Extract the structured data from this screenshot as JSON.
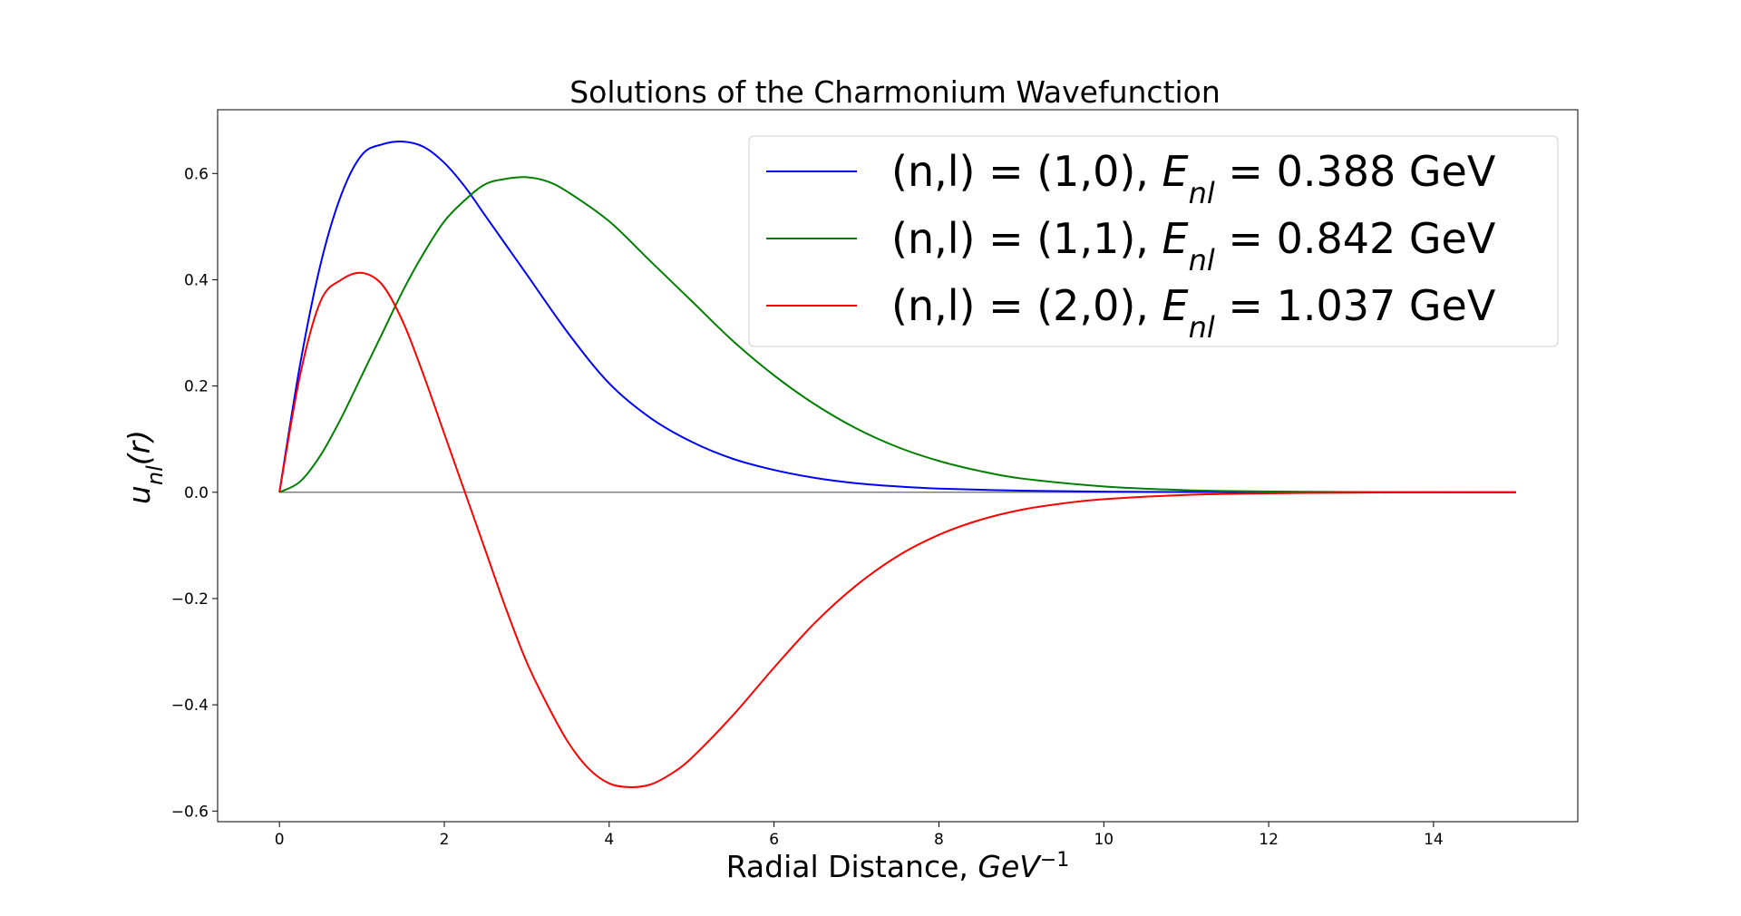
{
  "chart_data": {
    "type": "line",
    "title": "Solutions of the Charmonium Wavefunction",
    "xlabel": {
      "text": "Radial Distance, ",
      "italic": "GeV",
      "sup": "−1"
    },
    "ylabel": {
      "italic": "u",
      "sub": "nl",
      "rest": "(r)"
    },
    "xlim": [
      -0.75,
      15.75
    ],
    "ylim": [
      -0.62,
      0.72
    ],
    "x_ticks": [
      0,
      2,
      4,
      6,
      8,
      10,
      12,
      14
    ],
    "x_tick_labels": [
      "0",
      "2",
      "4",
      "6",
      "8",
      "10",
      "12",
      "14"
    ],
    "y_ticks": [
      -0.6,
      -0.4,
      -0.2,
      0.0,
      0.2,
      0.4,
      0.6
    ],
    "y_tick_labels": [
      "−0.6",
      "−0.4",
      "−0.2",
      "0.0",
      "0.2",
      "0.4",
      "0.6"
    ],
    "grid": false,
    "legend_position": "top-right",
    "reference_line": {
      "y": 0,
      "x_range": [
        0,
        15
      ],
      "color": "#808080"
    },
    "series": [
      {
        "label_prefix": "(n,l) = (1,0), ",
        "label_italic": "E",
        "label_sub": "nl",
        "label_suffix": " =  0.388 GeV",
        "color": "#0000ff",
        "x": [
          0,
          0.25,
          0.5,
          0.75,
          1.0,
          1.25,
          1.5,
          1.75,
          2.0,
          2.25,
          2.5,
          2.75,
          3.0,
          3.5,
          4.0,
          4.5,
          5.0,
          5.5,
          6.0,
          6.5,
          7.0,
          7.5,
          8.0,
          9.0,
          10.0,
          11.0,
          12.0,
          13.0,
          14.0,
          15.0
        ],
        "y": [
          0,
          0.24,
          0.43,
          0.56,
          0.635,
          0.655,
          0.66,
          0.65,
          0.62,
          0.575,
          0.52,
          0.465,
          0.41,
          0.3,
          0.205,
          0.14,
          0.095,
          0.063,
          0.042,
          0.027,
          0.017,
          0.011,
          0.007,
          0.003,
          0.0012,
          0.0005,
          0.0002,
          0.0001,
          0,
          0
        ]
      },
      {
        "label_prefix": "(n,l) = (1,1), ",
        "label_italic": "E",
        "label_sub": "nl",
        "label_suffix": " =  0.842 GeV",
        "color": "#008000",
        "x": [
          0,
          0.25,
          0.5,
          0.75,
          1.0,
          1.25,
          1.5,
          1.75,
          2.0,
          2.25,
          2.5,
          2.75,
          3.0,
          3.25,
          3.5,
          4.0,
          4.5,
          5.0,
          5.5,
          6.0,
          6.5,
          7.0,
          7.5,
          8.0,
          8.5,
          9.0,
          10.0,
          11.0,
          12.0,
          13.0,
          14.0,
          15.0
        ],
        "y": [
          0,
          0.02,
          0.07,
          0.14,
          0.22,
          0.3,
          0.38,
          0.45,
          0.51,
          0.55,
          0.58,
          0.59,
          0.593,
          0.585,
          0.565,
          0.51,
          0.435,
          0.36,
          0.285,
          0.22,
          0.165,
          0.12,
          0.085,
          0.059,
          0.04,
          0.026,
          0.011,
          0.004,
          0.0015,
          0.0005,
          0.0002,
          0
        ]
      },
      {
        "label_prefix": "(n,l) = (2,0), ",
        "label_italic": "E",
        "label_sub": "nl",
        "label_suffix": " =  1.037 GeV",
        "color": "#ff0000",
        "x": [
          0,
          0.25,
          0.5,
          0.75,
          1.0,
          1.25,
          1.5,
          1.75,
          2.0,
          2.25,
          2.5,
          2.75,
          3.0,
          3.25,
          3.5,
          3.75,
          4.0,
          4.25,
          4.5,
          4.75,
          5.0,
          5.5,
          6.0,
          6.5,
          7.0,
          7.5,
          8.0,
          8.5,
          9.0,
          9.5,
          10.0,
          11.0,
          12.0,
          13.0,
          14.0,
          15.0
        ],
        "y": [
          0,
          0.22,
          0.36,
          0.4,
          0.413,
          0.39,
          0.32,
          0.22,
          0.11,
          0.0,
          -0.11,
          -0.22,
          -0.32,
          -0.4,
          -0.47,
          -0.52,
          -0.548,
          -0.555,
          -0.55,
          -0.53,
          -0.5,
          -0.42,
          -0.33,
          -0.245,
          -0.175,
          -0.12,
          -0.08,
          -0.052,
          -0.033,
          -0.021,
          -0.013,
          -0.005,
          -0.002,
          -0.0007,
          -0.0002,
          0
        ]
      }
    ]
  }
}
